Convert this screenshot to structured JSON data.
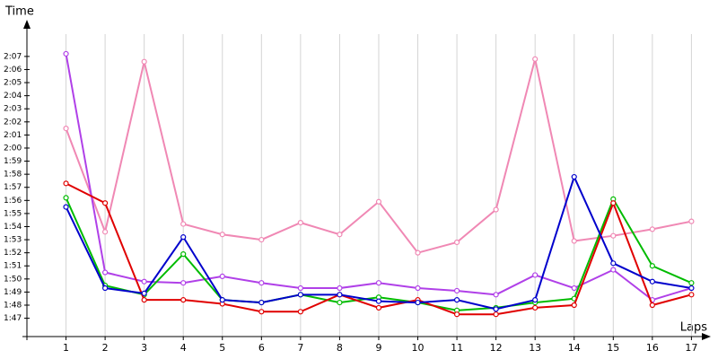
{
  "chart_data": {
    "type": "line",
    "y_label": "Time",
    "x_label": "Laps",
    "x": [
      1,
      2,
      3,
      4,
      5,
      6,
      7,
      8,
      9,
      10,
      11,
      12,
      13,
      14,
      15,
      16,
      17
    ],
    "xlim": [
      0,
      17.45
    ],
    "xticks": [
      1,
      2,
      3,
      4,
      5,
      6,
      7,
      8,
      9,
      10,
      11,
      12,
      13,
      14,
      15,
      16,
      17
    ],
    "ylim": [
      105.6,
      128.5
    ],
    "yticks": [
      {
        "value": 107,
        "label": "1:47"
      },
      {
        "value": 108,
        "label": "1:48"
      },
      {
        "value": 109,
        "label": "1:49"
      },
      {
        "value": 110,
        "label": "1:50"
      },
      {
        "value": 111,
        "label": "1:51"
      },
      {
        "value": 112,
        "label": "1:52"
      },
      {
        "value": 113,
        "label": "1:53"
      },
      {
        "value": 114,
        "label": "1:54"
      },
      {
        "value": 115,
        "label": "1:55"
      },
      {
        "value": 116,
        "label": "1:56"
      },
      {
        "value": 117,
        "label": "1:57"
      },
      {
        "value": 118,
        "label": "1:58"
      },
      {
        "value": 119,
        "label": "1:59"
      },
      {
        "value": 120,
        "label": "2:00"
      },
      {
        "value": 121,
        "label": "2:01"
      },
      {
        "value": 122,
        "label": "2:02"
      },
      {
        "value": 123,
        "label": "2:03"
      },
      {
        "value": 124,
        "label": "2:04"
      },
      {
        "value": 125,
        "label": "2:05"
      },
      {
        "value": 126,
        "label": "2:06"
      },
      {
        "value": 127,
        "label": "2:07"
      }
    ],
    "grid": "x",
    "series": [
      {
        "color": "#f088b4",
        "values": [
          121.5,
          113.6,
          126.6,
          114.2,
          113.4,
          113.0,
          114.3,
          113.4,
          115.9,
          112.0,
          112.8,
          115.3,
          126.8,
          112.9,
          113.3,
          113.8,
          114.4
        ]
      },
      {
        "color": "#b040e8",
        "values": [
          127.2,
          110.5,
          109.8,
          109.7,
          110.2,
          109.7,
          109.3,
          109.3,
          109.7,
          109.3,
          109.1,
          108.8,
          110.3,
          109.3,
          110.7,
          108.4,
          109.3
        ]
      },
      {
        "color": "#00bb00",
        "values": [
          116.2,
          109.5,
          108.8,
          111.9,
          108.4,
          108.2,
          108.8,
          108.2,
          108.6,
          108.2,
          107.6,
          107.8,
          108.2,
          108.5,
          116.1,
          111.0,
          109.7
        ]
      },
      {
        "color": "#e00000",
        "values": [
          117.3,
          115.8,
          108.4,
          108.4,
          108.1,
          107.5,
          107.5,
          108.8,
          107.8,
          108.4,
          107.3,
          107.3,
          107.8,
          108.0,
          115.8,
          108.0,
          108.8
        ]
      },
      {
        "color": "#0000cc",
        "values": [
          115.5,
          109.3,
          108.9,
          113.2,
          108.4,
          108.2,
          108.8,
          108.8,
          108.3,
          108.2,
          108.4,
          107.7,
          108.4,
          117.8,
          111.2,
          109.8,
          109.3
        ]
      }
    ]
  }
}
